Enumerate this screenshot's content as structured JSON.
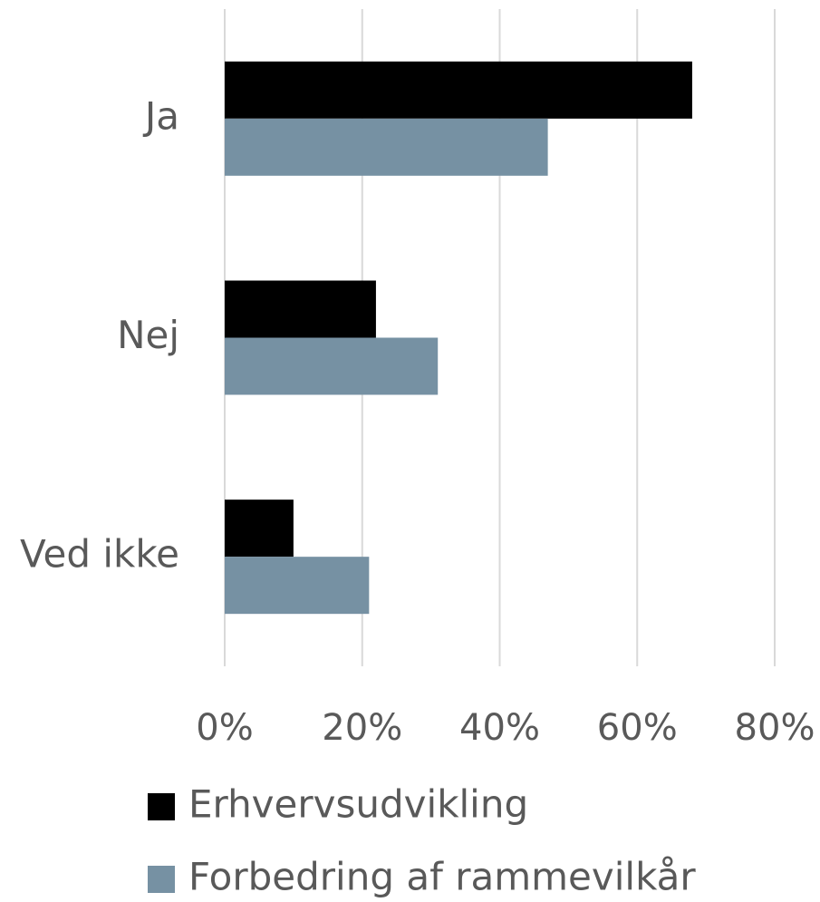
{
  "chart_data": {
    "type": "bar",
    "orientation": "horizontal",
    "categories": [
      "Ja",
      "Nej",
      "Ved ikke"
    ],
    "series": [
      {
        "name": "Erhvervsudvikling",
        "color": "#000000",
        "values": [
          68,
          22,
          10
        ]
      },
      {
        "name": "Forbedring af rammevilkår",
        "color": "#7691a3",
        "values": [
          47,
          31,
          21
        ]
      }
    ],
    "xlim": [
      0,
      80
    ],
    "xticks": [
      {
        "value": 0,
        "label": "0%"
      },
      {
        "value": 20,
        "label": "20%"
      },
      {
        "value": 40,
        "label": "40%"
      },
      {
        "value": 60,
        "label": "60%"
      },
      {
        "value": 80,
        "label": "80%"
      }
    ],
    "grid": true,
    "legend": "bottom"
  }
}
